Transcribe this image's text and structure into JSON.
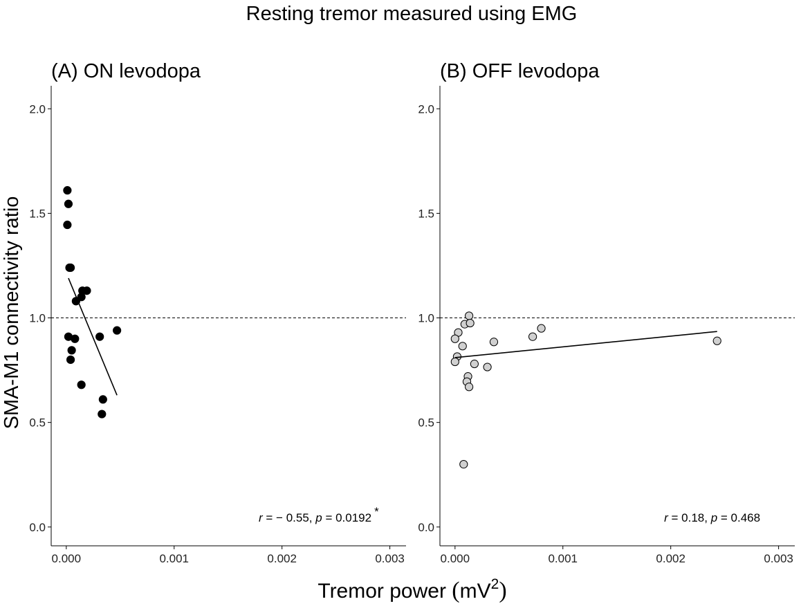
{
  "figure": {
    "title": "Resting tremor measured using EMG",
    "ylabel": "SMA-M1 connectivity ratio",
    "xlabel_main": "Tremor power ",
    "xlabel_paren_open": "(",
    "xlabel_unit": "mV",
    "xlabel_sup": "2",
    "xlabel_paren_close": ")"
  },
  "chart_data": [
    {
      "type": "scatter",
      "title": "(A) ON levodopa",
      "xlabel": "Tremor power (mV2)",
      "ylabel": "SMA-M1 connectivity ratio",
      "xlim": [
        -0.00014,
        0.00315
      ],
      "ylim": [
        -0.09,
        2.11
      ],
      "x_ticks": [
        0,
        0.001,
        0.002,
        0.003
      ],
      "x_tick_labels": [
        "0.000",
        "0.001",
        "0.002",
        "0.003"
      ],
      "y_ticks": [
        0,
        0.5,
        1.0,
        1.5,
        2.0
      ],
      "y_tick_labels": [
        "0.0",
        "0.5",
        "1.0",
        "1.5",
        "2.0"
      ],
      "reference_line_y": 1.0,
      "marker_fill": "#000000",
      "points": [
        {
          "x": 1e-05,
          "y": 1.61
        },
        {
          "x": 2e-05,
          "y": 1.545
        },
        {
          "x": 1e-05,
          "y": 1.445
        },
        {
          "x": 4e-05,
          "y": 1.24
        },
        {
          "x": 3e-05,
          "y": 1.24
        },
        {
          "x": 0.00015,
          "y": 1.13
        },
        {
          "x": 0.00019,
          "y": 1.13
        },
        {
          "x": 0.00014,
          "y": 1.1
        },
        {
          "x": 9e-05,
          "y": 1.08
        },
        {
          "x": 2e-05,
          "y": 0.91
        },
        {
          "x": 8e-05,
          "y": 0.9
        },
        {
          "x": 0.00031,
          "y": 0.91
        },
        {
          "x": 0.00047,
          "y": 0.94
        },
        {
          "x": 5e-05,
          "y": 0.845
        },
        {
          "x": 4e-05,
          "y": 0.8
        },
        {
          "x": 0.00014,
          "y": 0.68
        },
        {
          "x": 0.00034,
          "y": 0.61
        },
        {
          "x": 0.00033,
          "y": 0.54
        }
      ],
      "fit_line": {
        "x": [
          2e-05,
          0.00047
        ],
        "y": [
          1.19,
          0.63
        ]
      },
      "annotation": {
        "r_symbol": "r",
        "r_text": " = − 0.55, ",
        "p_symbol": "p",
        "p_text": " = 0.0192",
        "significance": "*",
        "anchor_x": 0.00283,
        "anchor_y": 0.025
      }
    },
    {
      "type": "scatter",
      "title": "(B) OFF levodopa",
      "xlabel": "Tremor power (mV2)",
      "ylabel": "SMA-M1 connectivity ratio",
      "xlim": [
        -0.00014,
        0.00315
      ],
      "ylim": [
        -0.09,
        2.11
      ],
      "x_ticks": [
        0,
        0.001,
        0.002,
        0.003
      ],
      "x_tick_labels": [
        "0.000",
        "0.001",
        "0.002",
        "0.003"
      ],
      "y_ticks": [
        0,
        0.5,
        1.0,
        1.5,
        2.0
      ],
      "y_tick_labels": [
        "0.0",
        "0.5",
        "1.0",
        "1.5",
        "2.0"
      ],
      "reference_line_y": 1.0,
      "marker_fill": "#d0d0d0",
      "points": [
        {
          "x": 0.00013,
          "y": 1.01
        },
        {
          "x": 9e-05,
          "y": 0.97
        },
        {
          "x": 0.00014,
          "y": 0.975
        },
        {
          "x": 3e-05,
          "y": 0.93
        },
        {
          "x": 0.0,
          "y": 0.9
        },
        {
          "x": 7e-05,
          "y": 0.865
        },
        {
          "x": 2e-05,
          "y": 0.815
        },
        {
          "x": 0.0,
          "y": 0.79
        },
        {
          "x": 0.00036,
          "y": 0.885
        },
        {
          "x": 0.00072,
          "y": 0.91
        },
        {
          "x": 0.0008,
          "y": 0.95
        },
        {
          "x": 0.00018,
          "y": 0.78
        },
        {
          "x": 0.0003,
          "y": 0.765
        },
        {
          "x": 0.00012,
          "y": 0.72
        },
        {
          "x": 0.00011,
          "y": 0.695
        },
        {
          "x": 0.00013,
          "y": 0.67
        },
        {
          "x": 8e-05,
          "y": 0.3
        },
        {
          "x": 0.00243,
          "y": 0.89
        }
      ],
      "fit_line": {
        "x": [
          0.0,
          0.00243
        ],
        "y": [
          0.81,
          0.935
        ]
      },
      "annotation": {
        "r_symbol": "r",
        "r_text": " = 0.18, ",
        "p_symbol": "p",
        "p_text": " = 0.468",
        "significance": "",
        "anchor_x": 0.00283,
        "anchor_y": 0.025
      }
    }
  ]
}
